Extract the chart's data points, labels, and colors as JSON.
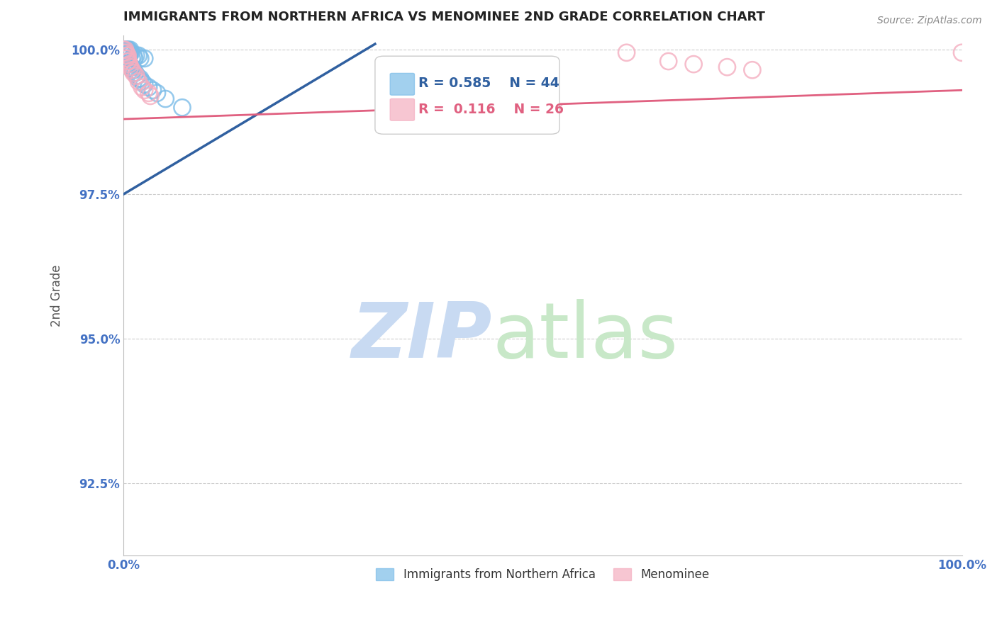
{
  "title": "IMMIGRANTS FROM NORTHERN AFRICA VS MENOMINEE 2ND GRADE CORRELATION CHART",
  "source": "Source: ZipAtlas.com",
  "ylabel": "2nd Grade",
  "legend_blue_label": "Immigrants from Northern Africa",
  "legend_pink_label": "Menominee",
  "R_blue": 0.585,
  "N_blue": 44,
  "R_pink": 0.116,
  "N_pink": 26,
  "xlim": [
    0.0,
    1.0
  ],
  "ylim": [
    0.9125,
    1.0025
  ],
  "yticks": [
    0.925,
    0.95,
    0.975,
    1.0
  ],
  "ytick_labels": [
    "92.5%",
    "95.0%",
    "97.5%",
    "100.0%"
  ],
  "xtick_labels": [
    "0.0%",
    "100.0%"
  ],
  "xticks": [
    0.0,
    1.0
  ],
  "blue_color": "#7bbce8",
  "pink_color": "#f4aec0",
  "blue_line_color": "#3060a0",
  "pink_line_color": "#e06080",
  "blue_dots": [
    [
      0.0,
      1.0
    ],
    [
      0.0,
      0.9995
    ],
    [
      0.002,
      1.0
    ],
    [
      0.002,
      0.9995
    ],
    [
      0.003,
      1.0
    ],
    [
      0.003,
      0.9995
    ],
    [
      0.003,
      0.999
    ],
    [
      0.004,
      1.0
    ],
    [
      0.004,
      0.9995
    ],
    [
      0.005,
      1.0
    ],
    [
      0.006,
      1.0
    ],
    [
      0.006,
      0.9995
    ],
    [
      0.007,
      0.9995
    ],
    [
      0.007,
      0.999
    ],
    [
      0.008,
      1.0
    ],
    [
      0.009,
      0.9995
    ],
    [
      0.01,
      0.9985
    ],
    [
      0.012,
      0.999
    ],
    [
      0.013,
      0.9985
    ],
    [
      0.015,
      0.999
    ],
    [
      0.018,
      0.999
    ],
    [
      0.02,
      0.9985
    ],
    [
      0.025,
      0.9985
    ],
    [
      0.003,
      0.9985
    ],
    [
      0.004,
      0.998
    ],
    [
      0.005,
      0.9975
    ],
    [
      0.006,
      0.9975
    ],
    [
      0.007,
      0.9975
    ],
    [
      0.008,
      0.997
    ],
    [
      0.009,
      0.997
    ],
    [
      0.01,
      0.997
    ],
    [
      0.011,
      0.9965
    ],
    [
      0.012,
      0.9965
    ],
    [
      0.014,
      0.996
    ],
    [
      0.016,
      0.9955
    ],
    [
      0.018,
      0.995
    ],
    [
      0.02,
      0.995
    ],
    [
      0.022,
      0.9945
    ],
    [
      0.025,
      0.994
    ],
    [
      0.03,
      0.9935
    ],
    [
      0.035,
      0.993
    ],
    [
      0.04,
      0.9925
    ],
    [
      0.05,
      0.9915
    ],
    [
      0.07,
      0.99
    ]
  ],
  "pink_dots": [
    [
      0.0,
      1.0
    ],
    [
      0.0,
      0.9995
    ],
    [
      0.002,
      1.0
    ],
    [
      0.003,
      0.9995
    ],
    [
      0.004,
      0.999
    ],
    [
      0.005,
      0.999
    ],
    [
      0.003,
      0.9985
    ],
    [
      0.004,
      0.9985
    ],
    [
      0.005,
      0.998
    ],
    [
      0.006,
      0.998
    ],
    [
      0.007,
      0.9975
    ],
    [
      0.008,
      0.997
    ],
    [
      0.01,
      0.9965
    ],
    [
      0.012,
      0.996
    ],
    [
      0.015,
      0.9955
    ],
    [
      0.018,
      0.9945
    ],
    [
      0.022,
      0.9935
    ],
    [
      0.025,
      0.993
    ],
    [
      0.03,
      0.9925
    ],
    [
      0.032,
      0.992
    ],
    [
      0.6,
      0.9995
    ],
    [
      0.65,
      0.998
    ],
    [
      0.68,
      0.9975
    ],
    [
      0.72,
      0.997
    ],
    [
      0.75,
      0.9965
    ],
    [
      1.0,
      0.9995
    ]
  ],
  "blue_line_x": [
    0.0,
    0.3
  ],
  "blue_line_y": [
    0.975,
    1.001
  ],
  "pink_line_x": [
    0.0,
    1.0
  ],
  "pink_line_y": [
    0.988,
    0.993
  ],
  "title_fontsize": 13,
  "tick_color": "#4472c4",
  "ylabel_color": "#555555"
}
